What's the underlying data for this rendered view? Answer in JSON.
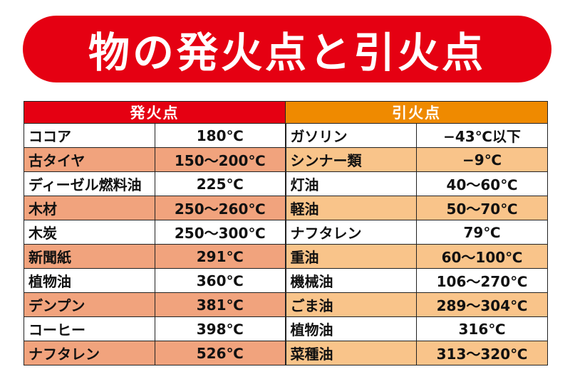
{
  "title": "物の発火点と引火点",
  "colors": {
    "banner": "#e50012",
    "ignition_header": "#e50012",
    "flash_header": "#ef8a00",
    "ignition_alt": "#f1a37d",
    "flash_alt": "#f9c48a"
  },
  "headers": {
    "ignition": "発火点",
    "flash": "引火点"
  },
  "rows": [
    {
      "ig_name": "ココア",
      "ig_temp": "180℃",
      "fl_name": "ガソリン",
      "fl_temp": "−43℃以下"
    },
    {
      "ig_name": "古タイヤ",
      "ig_temp": "150～200℃",
      "fl_name": "シンナー類",
      "fl_temp": "−9℃"
    },
    {
      "ig_name": "ディーゼル燃料油",
      "ig_temp": "225℃",
      "fl_name": "灯油",
      "fl_temp": "40～60℃"
    },
    {
      "ig_name": "木材",
      "ig_temp": "250～260℃",
      "fl_name": "軽油",
      "fl_temp": "50～70℃"
    },
    {
      "ig_name": "木炭",
      "ig_temp": "250～300℃",
      "fl_name": "ナフタレン",
      "fl_temp": "79℃"
    },
    {
      "ig_name": "新聞紙",
      "ig_temp": "291℃",
      "fl_name": "重油",
      "fl_temp": "60～100℃"
    },
    {
      "ig_name": "植物油",
      "ig_temp": "360℃",
      "fl_name": "機械油",
      "fl_temp": "106～270℃"
    },
    {
      "ig_name": "デンプン",
      "ig_temp": "381℃",
      "fl_name": "ごま油",
      "fl_temp": "289～304℃"
    },
    {
      "ig_name": "コーヒー",
      "ig_temp": "398℃",
      "fl_name": "植物油",
      "fl_temp": "316℃"
    },
    {
      "ig_name": "ナフタレン",
      "ig_temp": "526℃",
      "fl_name": "菜種油",
      "fl_temp": "313～320℃"
    }
  ]
}
